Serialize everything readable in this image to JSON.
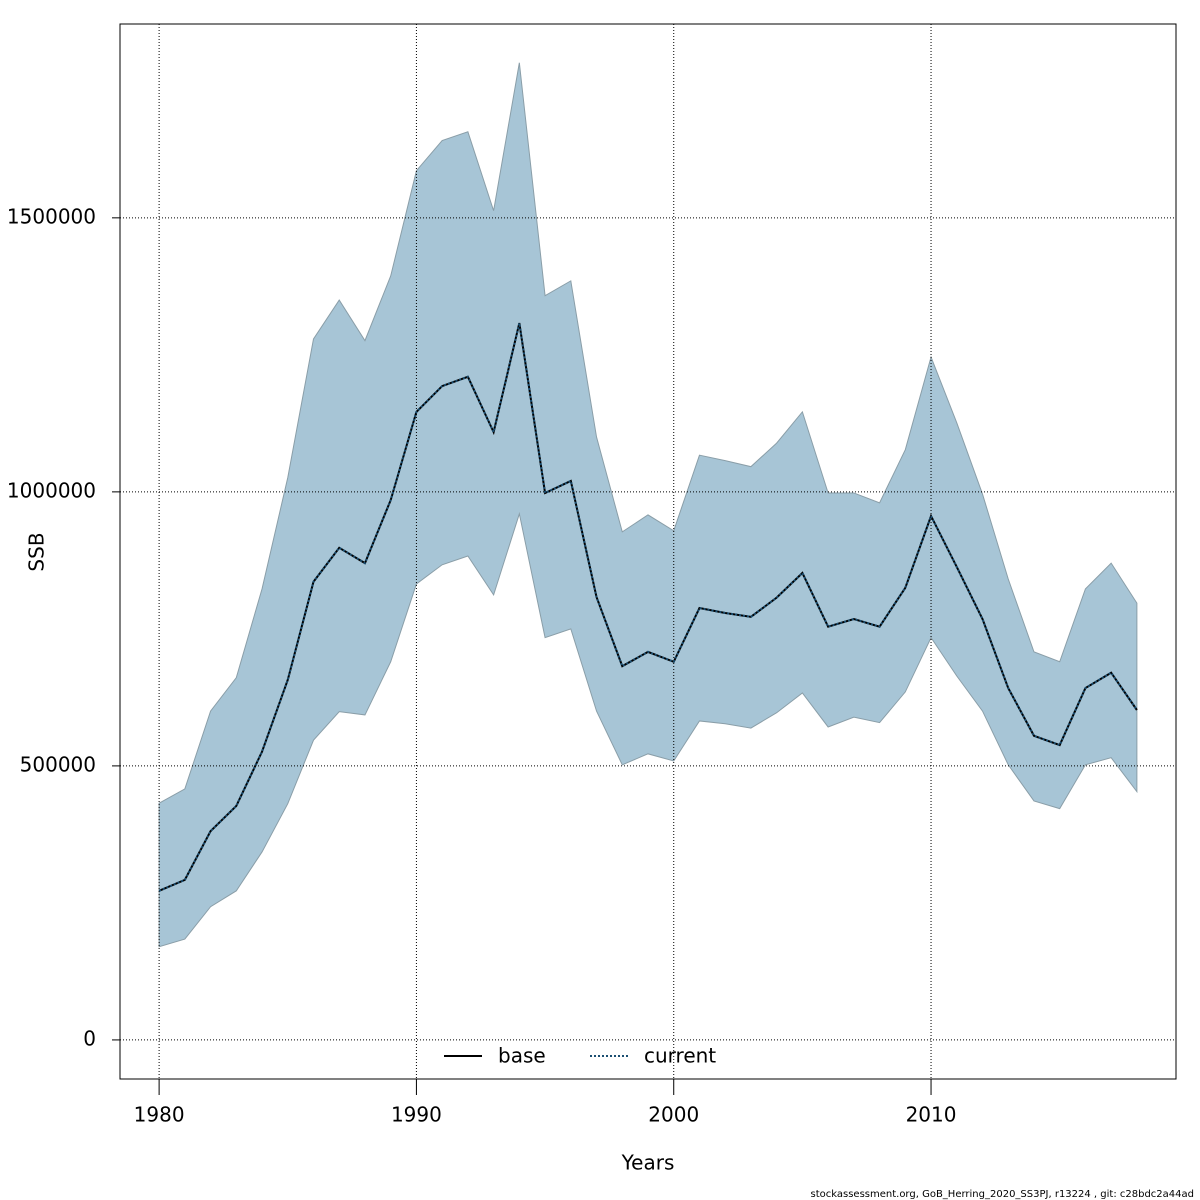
{
  "chart_data": {
    "type": "line",
    "x_label": "Years",
    "y_label": "SSB",
    "footer": "stockassessment.org, GoB_Herring_2020_SS3PJ, r13224 , git: c28bdc2a44ad",
    "x": [
      1980,
      1981,
      1982,
      1983,
      1984,
      1985,
      1986,
      1987,
      1988,
      1989,
      1990,
      1991,
      1992,
      1993,
      1994,
      1995,
      1996,
      1997,
      1998,
      1999,
      2000,
      2001,
      2002,
      2003,
      2004,
      2005,
      2006,
      2007,
      2008,
      2009,
      2010,
      2011,
      2012,
      2013,
      2014,
      2015,
      2016,
      2017,
      2018
    ],
    "band": {
      "color": "#a7c5d6",
      "upper": [
        432000,
        458000,
        600000,
        661000,
        823000,
        1026000,
        1279000,
        1350000,
        1276000,
        1394000,
        1586000,
        1641000,
        1657000,
        1513000,
        1783000,
        1358000,
        1385000,
        1100000,
        927000,
        958000,
        929000,
        1067000,
        1057000,
        1046000,
        1089000,
        1146000,
        998000,
        998000,
        980000,
        1077000,
        1246000,
        1126000,
        996000,
        841000,
        708000,
        690000,
        823000,
        870000,
        797000
      ],
      "lower": [
        170000,
        184000,
        243000,
        272000,
        343000,
        431000,
        547000,
        599000,
        593000,
        690000,
        832000,
        867000,
        883000,
        812000,
        960000,
        734000,
        750000,
        600000,
        502000,
        522000,
        509000,
        582000,
        577000,
        569000,
        597000,
        633000,
        571000,
        589000,
        579000,
        635000,
        734000,
        664000,
        600000,
        502000,
        436000,
        422000,
        502000,
        515000,
        453000
      ]
    },
    "series": [
      {
        "name": "base",
        "color": "#000000",
        "dash": "solid",
        "values": [
          272000,
          292000,
          381000,
          427000,
          526000,
          657000,
          836000,
          898000,
          870000,
          985000,
          1146000,
          1193000,
          1210000,
          1109000,
          1308000,
          998000,
          1020000,
          808000,
          682000,
          708000,
          690000,
          788000,
          779000,
          772000,
          807000,
          852000,
          754000,
          768000,
          754000,
          825000,
          956000,
          863000,
          768000,
          642000,
          555000,
          538000,
          642000,
          670000,
          602000
        ]
      },
      {
        "name": "current",
        "color": "#1b4f72",
        "dash": "dotted",
        "values": [
          272000,
          292000,
          381000,
          427000,
          526000,
          657000,
          836000,
          898000,
          870000,
          985000,
          1146000,
          1193000,
          1210000,
          1109000,
          1308000,
          998000,
          1020000,
          808000,
          682000,
          708000,
          690000,
          788000,
          779000,
          772000,
          807000,
          852000,
          754000,
          768000,
          754000,
          825000,
          956000,
          863000,
          768000,
          642000,
          555000,
          538000,
          642000,
          670000,
          602000
        ]
      }
    ],
    "xlim": [
      1978.48,
      2019.52
    ],
    "xticks": [
      1980,
      1990,
      2000,
      2010
    ],
    "ylim": [
      -71300,
      1853700
    ],
    "yticks": [
      0,
      500000,
      1000000,
      1500000
    ],
    "grid": true,
    "legend": "bottom"
  }
}
